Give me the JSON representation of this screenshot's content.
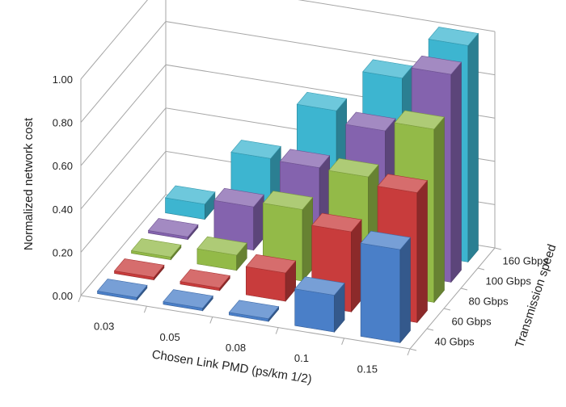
{
  "chart_data": {
    "type": "bar",
    "style": "3d-column",
    "title": "",
    "xlabel": "Chosen Link PMD (ps/km 1/2)",
    "ylabel": "Normalized network cost",
    "zlabel": "Transmission speed",
    "categories": [
      "0.03",
      "0.05",
      "0.08",
      "0.1",
      "0.15"
    ],
    "ylim": [
      0,
      1.0
    ],
    "yticks": [
      "0.00",
      "0.20",
      "0.40",
      "0.60",
      "0.80",
      "1.00"
    ],
    "grid": true,
    "legend": "none",
    "series": [
      {
        "name": "40 Gbps",
        "color": "#4a7fc8",
        "values": [
          0.0,
          0.0,
          0.0,
          0.17,
          0.43
        ]
      },
      {
        "name": "60 Gbps",
        "color": "#c83c3c",
        "values": [
          0.0,
          0.0,
          0.13,
          0.37,
          0.6
        ]
      },
      {
        "name": "80 Gbps",
        "color": "#93ba48",
        "values": [
          0.0,
          0.07,
          0.33,
          0.53,
          0.8
        ]
      },
      {
        "name": "100 Gbps",
        "color": "#8463ae",
        "values": [
          0.01,
          0.2,
          0.43,
          0.65,
          0.96
        ]
      },
      {
        "name": "160 Gbps",
        "color": "#3db5d0",
        "values": [
          0.07,
          0.33,
          0.6,
          0.8,
          1.0
        ]
      }
    ]
  }
}
